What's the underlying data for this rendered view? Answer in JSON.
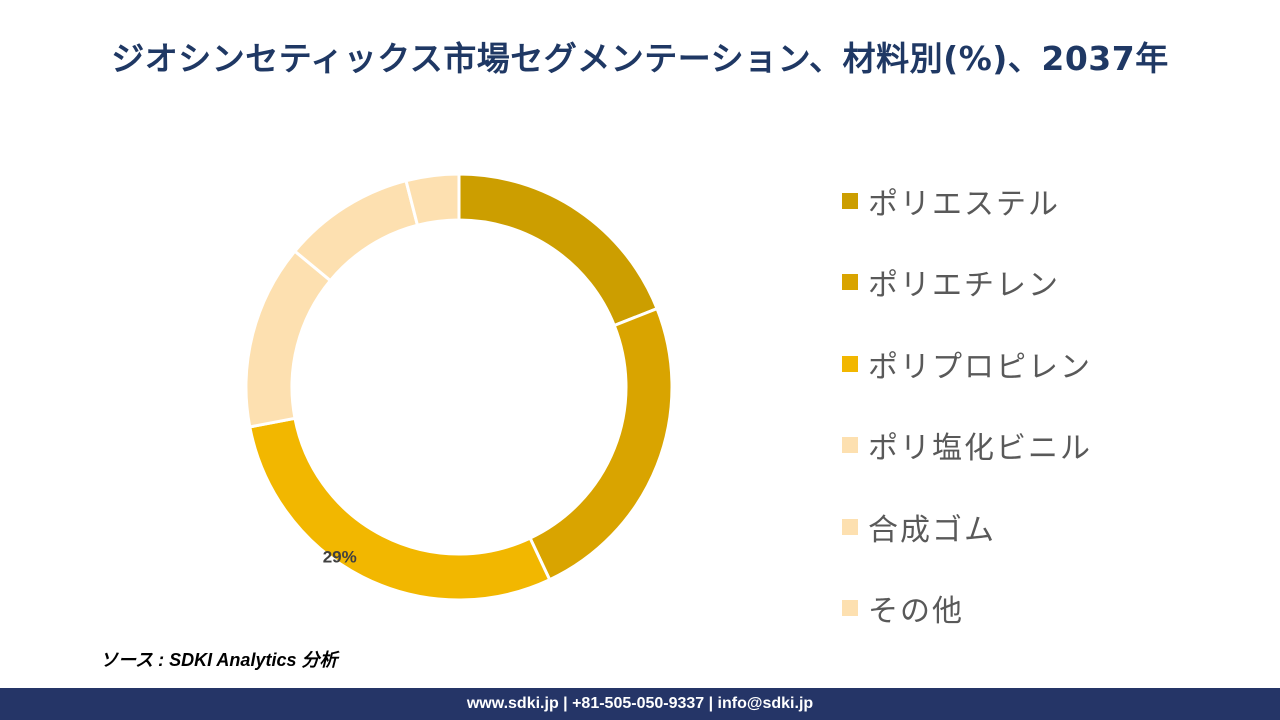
{
  "title": "ジオシンセティックス市場セグメンテーション、材料別(%)、2037年",
  "source": "ソース : SDKI Analytics 分析",
  "footer": "www.sdki.jp | +81-505-050-9337 | info@sdki.jp",
  "chart_data": {
    "type": "pie",
    "subtype": "donut",
    "categories": [
      "ポリエステル",
      "ポリエチレン",
      "ポリプロピレン",
      "ポリ塩化ビニル",
      "合成ゴム",
      "その他"
    ],
    "values": [
      19,
      24,
      29,
      14,
      10,
      4
    ],
    "colors": [
      "#cc9e00",
      "#d9a400",
      "#f2b700",
      "#fde0b0",
      "#fde0b0",
      "#fde0b0"
    ],
    "data_labels": [
      {
        "index": 2,
        "text": "29%"
      }
    ],
    "legend_position": "right"
  }
}
